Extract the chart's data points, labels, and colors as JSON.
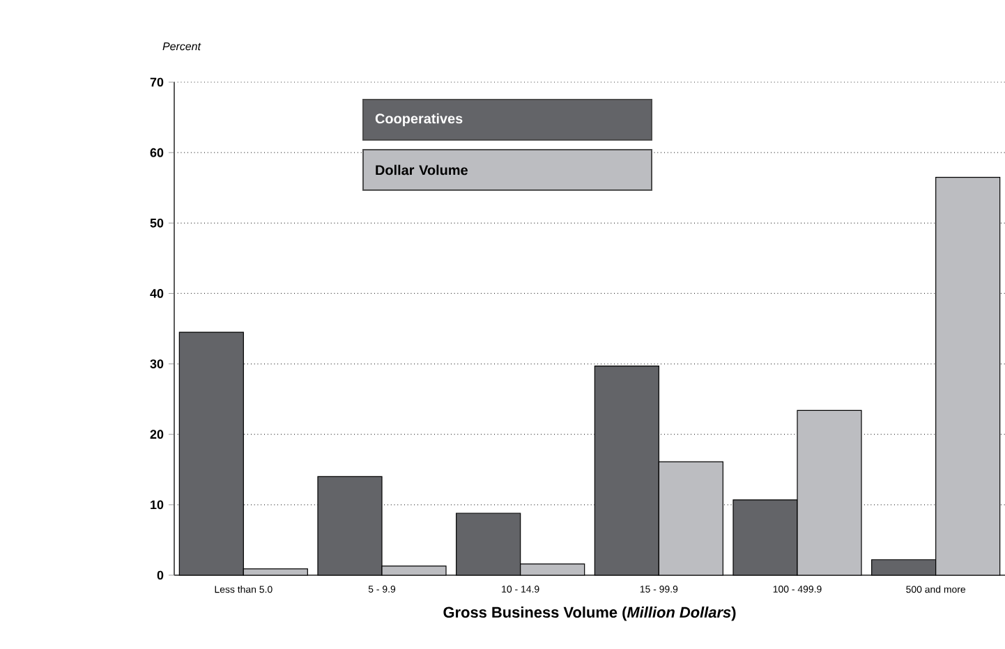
{
  "chart_data": {
    "type": "bar",
    "ylabel": "Percent",
    "xlabel": "Gross Business Volume (*Million Dollars*)",
    "categories": [
      "Less than 5.0",
      "5 - 9.9",
      "10 - 14.9",
      "15 - 99.9",
      "100 - 499.9",
      "500 and more"
    ],
    "series": [
      {
        "name": "Cooperatives",
        "color": "#636468",
        "values": [
          34.5,
          14.0,
          8.8,
          29.7,
          10.7,
          2.2
        ]
      },
      {
        "name": "Dollar Volume",
        "color": "#bcbdc1",
        "values": [
          0.9,
          1.3,
          1.6,
          16.1,
          23.4,
          56.5
        ]
      }
    ],
    "ylim": [
      0,
      70
    ],
    "yticks": [
      0,
      10,
      20,
      30,
      40,
      50,
      60,
      70
    ],
    "grid": "y",
    "legend": "top"
  }
}
